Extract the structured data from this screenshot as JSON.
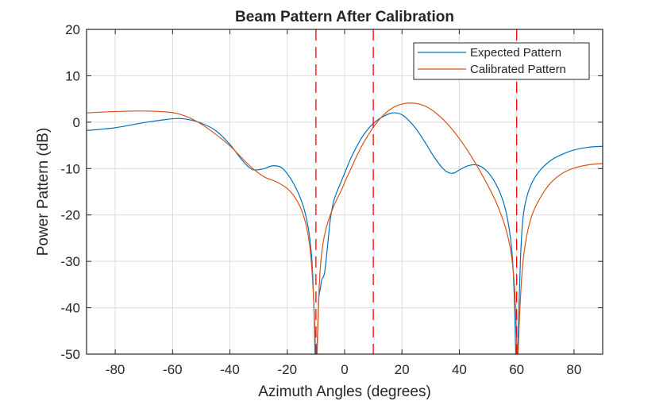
{
  "chart_data": {
    "type": "line",
    "title": "Beam Pattern After Calibration",
    "xlabel": "Azimuth Angles (degrees)",
    "ylabel": "Power Pattern (dB)",
    "xlim": [
      -90,
      90
    ],
    "ylim": [
      -50,
      20
    ],
    "xticks": [
      -80,
      -60,
      -40,
      -20,
      0,
      20,
      40,
      60,
      80
    ],
    "yticks": [
      20,
      10,
      0,
      -10,
      -20,
      -30,
      -40,
      -50
    ],
    "grid": true,
    "legend": {
      "position": "top-right",
      "entries": [
        "Expected Pattern",
        "Calibrated Pattern"
      ]
    },
    "series": [
      {
        "name": "Expected Pattern",
        "color": "#0072BD",
        "x": [
          -90,
          -80,
          -70,
          -62,
          -58,
          -54,
          -50,
          -45,
          -40,
          -36,
          -33,
          -31,
          -28,
          -25,
          -22,
          -19,
          -16,
          -14,
          -12.5,
          -11.5,
          -11,
          -10.6,
          -10.3,
          -9.8,
          -9.4,
          -9,
          -8.5,
          -8,
          -7,
          -6,
          -5,
          -4,
          -3,
          -2,
          0,
          2,
          4,
          6,
          8,
          10,
          12,
          14,
          16,
          18,
          20,
          22,
          25,
          28,
          31,
          34,
          36,
          38,
          40,
          43,
          46,
          49,
          52,
          55,
          57,
          58.5,
          59.3,
          59.7,
          60.3,
          60.8,
          61.3,
          62,
          63,
          65,
          68,
          72,
          76,
          80,
          85,
          90
        ],
        "values": [
          -1.8,
          -1.2,
          -0.1,
          0.6,
          0.8,
          0.5,
          -0.2,
          -1.8,
          -4.8,
          -8.0,
          -9.9,
          -10.3,
          -10.0,
          -9.4,
          -9.8,
          -12.0,
          -15.5,
          -19.0,
          -23.5,
          -29.0,
          -35.0,
          -42.0,
          -50.0,
          -50.0,
          -45.0,
          -38.0,
          -36.0,
          -34.0,
          -32.5,
          -27.0,
          -21.0,
          -17.5,
          -15.5,
          -14.0,
          -11.0,
          -8.0,
          -5.5,
          -3.3,
          -1.6,
          -0.3,
          0.7,
          1.4,
          1.9,
          2.0,
          1.6,
          0.6,
          -1.5,
          -4.3,
          -7.3,
          -9.8,
          -10.8,
          -11.0,
          -10.3,
          -9.4,
          -9.2,
          -10.2,
          -12.5,
          -16.5,
          -21.5,
          -29.0,
          -40.0,
          -50.0,
          -50.0,
          -40.0,
          -30.0,
          -22.0,
          -17.5,
          -13.5,
          -10.5,
          -8.2,
          -6.9,
          -6.0,
          -5.4,
          -5.2
        ]
      },
      {
        "name": "Calibrated Pattern",
        "color": "#D95319",
        "x": [
          -90,
          -80,
          -70,
          -62,
          -58,
          -54,
          -50,
          -45,
          -40,
          -36,
          -32,
          -28,
          -24,
          -20,
          -17,
          -15,
          -13.5,
          -12.3,
          -11.5,
          -10.9,
          -10.4,
          -10.1,
          -9.6,
          -9.3,
          -8.9,
          -8.3,
          -7.5,
          -6.5,
          -5,
          -3,
          -1,
          0,
          2,
          4,
          6,
          8,
          10,
          12,
          14,
          16,
          18,
          20,
          22,
          24,
          26,
          28,
          30,
          32,
          35,
          38,
          41,
          44,
          47,
          50,
          53,
          56,
          58,
          59.2,
          59.7,
          60.2,
          60.5,
          61,
          61.7,
          62.5,
          64,
          66,
          69,
          72,
          76,
          80,
          85,
          90
        ],
        "values": [
          2.0,
          2.3,
          2.4,
          2.2,
          1.8,
          0.9,
          -0.4,
          -2.6,
          -5.1,
          -7.6,
          -10.0,
          -11.8,
          -12.8,
          -14.3,
          -16.5,
          -19.0,
          -22.0,
          -26.0,
          -31.0,
          -37.0,
          -44.0,
          -50.0,
          -50.0,
          -43.0,
          -36.0,
          -30.0,
          -26.0,
          -23.0,
          -20.0,
          -17.0,
          -14.5,
          -13.0,
          -10.3,
          -7.6,
          -5.1,
          -3.0,
          -1.1,
          0.5,
          1.8,
          2.8,
          3.5,
          3.9,
          4.1,
          4.1,
          3.9,
          3.5,
          2.8,
          1.9,
          0.2,
          -1.9,
          -4.4,
          -7.2,
          -10.3,
          -13.7,
          -17.5,
          -22.5,
          -28.0,
          -35.0,
          -42.0,
          -50.0,
          -50.0,
          -42.0,
          -34.0,
          -28.5,
          -23.0,
          -19.0,
          -15.5,
          -13.0,
          -11.0,
          -9.9,
          -9.2,
          -8.9
        ]
      }
    ],
    "reference_lines": {
      "color": "#FF0000",
      "style": "dashed",
      "x": [
        -10,
        10,
        60
      ]
    }
  }
}
